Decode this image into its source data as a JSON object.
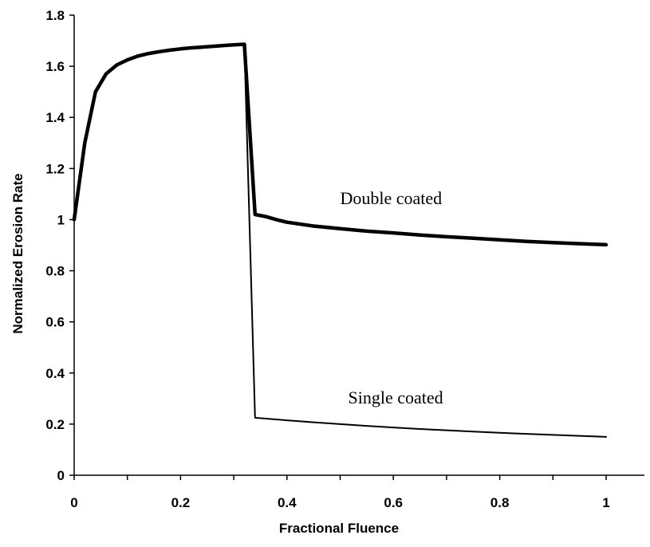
{
  "chart_data": {
    "type": "line",
    "title": "",
    "xlabel": "Fractional Fluence",
    "ylabel": "Normalized Erosion Rate",
    "xlim": [
      0,
      1.08
    ],
    "ylim": [
      0,
      1.8
    ],
    "xticks": [
      0,
      0.2,
      0.4,
      0.6,
      0.8,
      1
    ],
    "xtick_labels": [
      "0",
      "0.2",
      "0.4",
      "0.6",
      "0.8",
      "1"
    ],
    "yticks": [
      0,
      0.2,
      0.4,
      0.6,
      0.8,
      1,
      1.2,
      1.4,
      1.6,
      1.8
    ],
    "ytick_labels": [
      "0",
      "0.2",
      "0.4",
      "0.6",
      "0.8",
      "1",
      "1.2",
      "1.4",
      "1.6",
      "1.8"
    ],
    "grid": false,
    "legend": "none",
    "series": [
      {
        "label": "Double coated",
        "style": "thick",
        "color": "#000000",
        "x": [
          0,
          0.02,
          0.04,
          0.06,
          0.08,
          0.1,
          0.12,
          0.14,
          0.16,
          0.18,
          0.2,
          0.22,
          0.24,
          0.26,
          0.28,
          0.3,
          0.32,
          0.34,
          0.36,
          0.38,
          0.4,
          0.45,
          0.5,
          0.55,
          0.6,
          0.65,
          0.7,
          0.75,
          0.8,
          0.85,
          0.9,
          0.95,
          1.0
        ],
        "y": [
          1.0,
          1.3,
          1.5,
          1.57,
          1.605,
          1.625,
          1.64,
          1.65,
          1.657,
          1.663,
          1.668,
          1.672,
          1.675,
          1.678,
          1.681,
          1.684,
          1.686,
          1.02,
          1.012,
          1.0,
          0.99,
          0.975,
          0.965,
          0.955,
          0.948,
          0.94,
          0.933,
          0.927,
          0.921,
          0.915,
          0.91,
          0.906,
          0.902
        ]
      },
      {
        "label": "Single coated",
        "style": "thin",
        "color": "#000000",
        "x": [
          0,
          0.02,
          0.04,
          0.06,
          0.08,
          0.1,
          0.12,
          0.14,
          0.16,
          0.18,
          0.2,
          0.22,
          0.24,
          0.26,
          0.28,
          0.3,
          0.32,
          0.34,
          0.4,
          0.45,
          0.5,
          0.55,
          0.6,
          0.65,
          0.7,
          0.75,
          0.8,
          0.85,
          0.9,
          0.95,
          1.0
        ],
        "y": [
          1.0,
          1.3,
          1.5,
          1.57,
          1.605,
          1.625,
          1.64,
          1.65,
          1.657,
          1.663,
          1.668,
          1.672,
          1.675,
          1.678,
          1.681,
          1.684,
          1.686,
          0.225,
          0.215,
          0.207,
          0.2,
          0.193,
          0.187,
          0.181,
          0.176,
          0.171,
          0.166,
          0.162,
          0.158,
          0.154,
          0.15
        ]
      }
    ],
    "annotations": [
      {
        "text": "Double coated",
        "x": 0.5,
        "y": 1.06
      },
      {
        "text": "Single coated",
        "x": 0.515,
        "y": 0.28
      }
    ]
  }
}
